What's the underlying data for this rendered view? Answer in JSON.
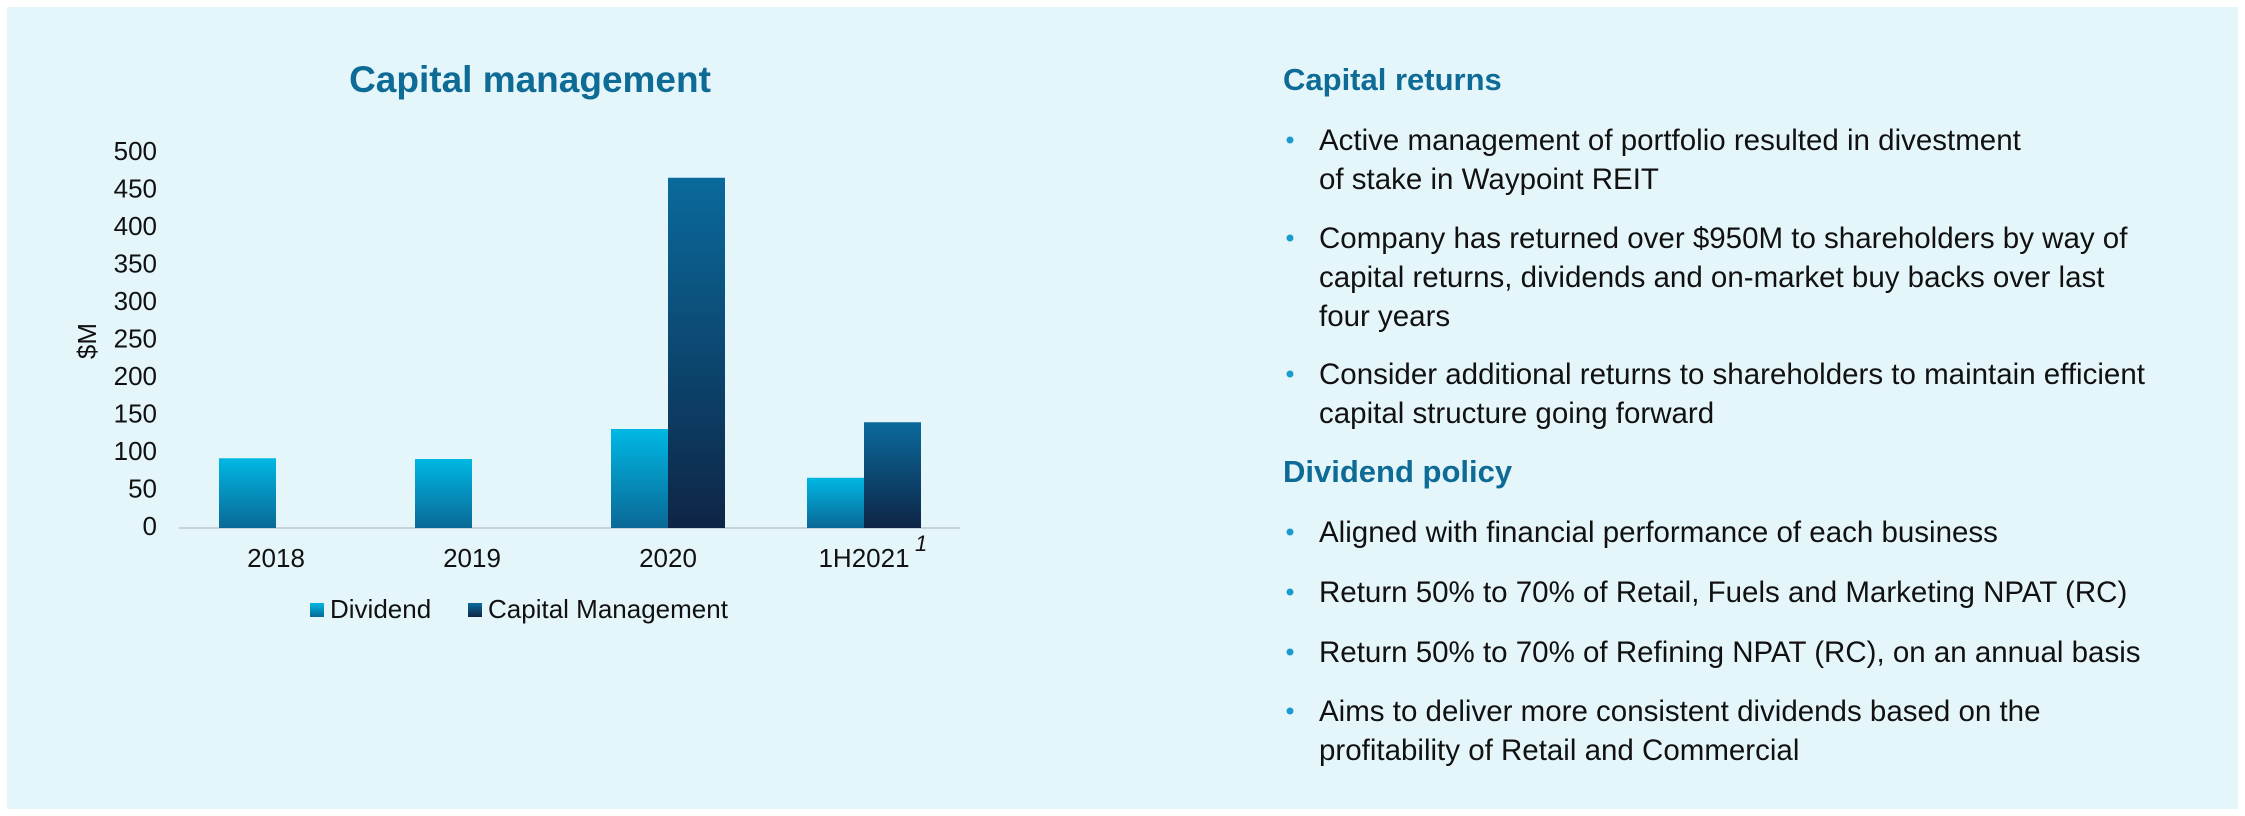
{
  "chart_data": {
    "type": "bar",
    "title": "Capital management",
    "y_label": "$M",
    "categories": [
      "2018",
      "2019",
      "2020",
      "1H2021"
    ],
    "category_footnotes": [
      null,
      null,
      null,
      "1"
    ],
    "series": [
      {
        "name": "Dividend",
        "color": "#00b8e4",
        "gradient_end": "#0a6896",
        "values": [
          93,
          92,
          132,
          67
        ]
      },
      {
        "name": "Capital Management",
        "color": "#0a6a9c",
        "gradient_end": "#0e2546",
        "values": [
          null,
          null,
          467,
          141
        ]
      }
    ],
    "ylim": [
      0,
      500
    ],
    "yticks": [
      0,
      50,
      100,
      150,
      200,
      250,
      300,
      350,
      400,
      450,
      500
    ],
    "grid": false,
    "legend": "bottom"
  },
  "text_panel": {
    "sections": [
      {
        "heading": "Capital returns",
        "bullets": [
          [
            "Active management of portfolio resulted in divestment",
            "of stake in Waypoint REIT"
          ],
          [
            "Company has returned over $950M to shareholders by way of",
            "capital returns, dividends and on-market buy backs over last",
            "four years"
          ],
          [
            "Consider additional returns to shareholders to maintain efficient",
            "capital structure going forward"
          ]
        ]
      },
      {
        "heading": "Dividend policy",
        "bullets": [
          [
            "Aligned with financial performance of each business"
          ],
          [
            "Return 50% to 70% of Retail, Fuels and Marketing NPAT (RC)"
          ],
          [
            "Return 50% to 70% of Refining NPAT (RC), on an annual basis"
          ],
          [
            "Aims to deliver more consistent dividends based on the",
            "profitability of Retail and Commercial"
          ]
        ]
      }
    ]
  }
}
